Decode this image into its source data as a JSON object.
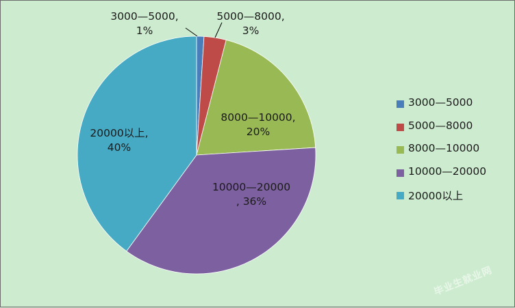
{
  "chart_data": {
    "type": "pie",
    "categories": [
      "3000—5000",
      "5000—8000",
      "8000—10000",
      "10000—20000",
      "20000以上"
    ],
    "values": [
      1,
      3,
      20,
      36,
      40
    ],
    "colors": [
      "#4a7ebb",
      "#be4b48",
      "#98b954",
      "#7d60a0",
      "#46aac4"
    ],
    "data_labels": [
      [
        "3000—5000,",
        "1%"
      ],
      [
        "5000—8000,",
        "3%"
      ],
      [
        "8000—10000,",
        "20%"
      ],
      [
        "10000—20000",
        ", 36%"
      ],
      [
        "20000以上,",
        "40%"
      ]
    ],
    "legend_position": "right"
  },
  "watermark": "毕业生就业网"
}
